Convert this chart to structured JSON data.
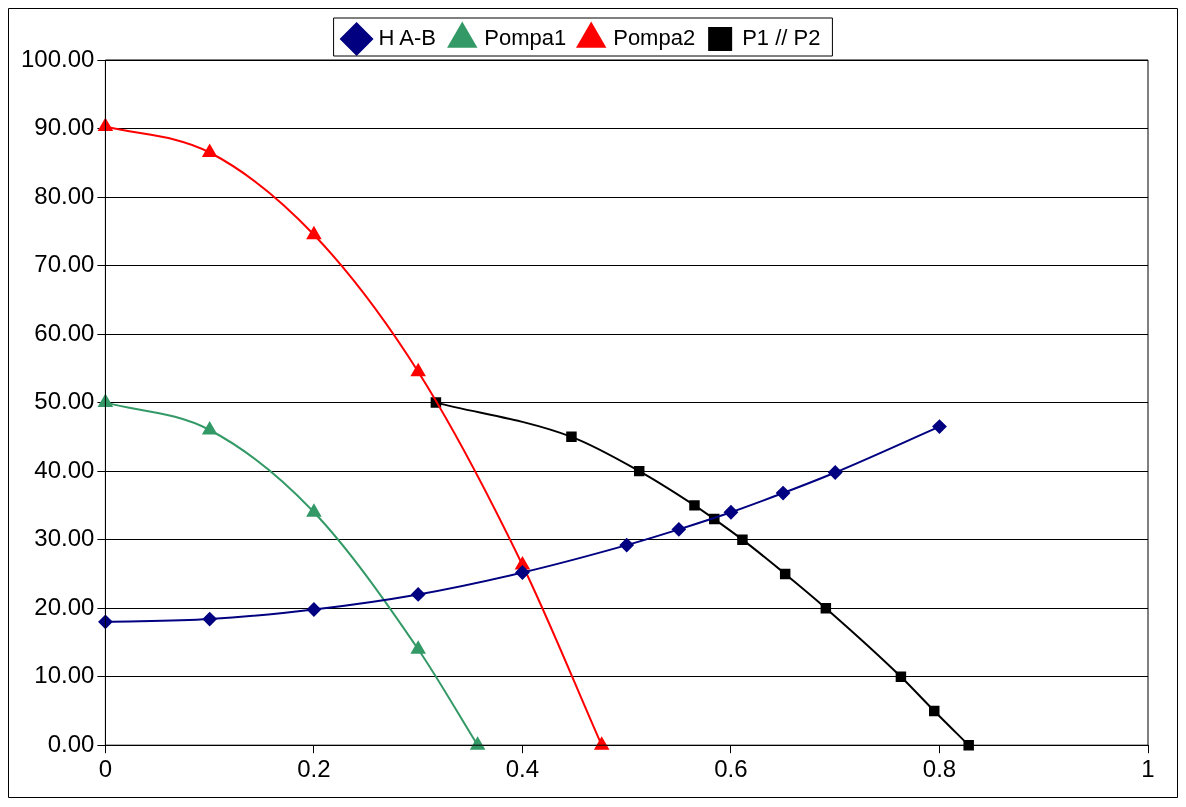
{
  "chart_data": {
    "type": "line",
    "xlim": [
      0,
      1
    ],
    "xticks": [
      0,
      0.2,
      0.4,
      0.6,
      0.8,
      1
    ],
    "ylim": [
      0,
      100
    ],
    "yticks": [
      {
        "value": 0,
        "label": "0.00"
      },
      {
        "value": 10,
        "label": "10.00"
      },
      {
        "value": 20,
        "label": "20.00"
      },
      {
        "value": 30,
        "label": "30.00"
      },
      {
        "value": 40,
        "label": "40.00"
      },
      {
        "value": 50,
        "label": "50.00"
      },
      {
        "value": 60,
        "label": "60.00"
      },
      {
        "value": 70,
        "label": "70.00"
      },
      {
        "value": 80,
        "label": "80.00"
      },
      {
        "value": 90,
        "label": "90.00"
      },
      {
        "value": 100,
        "label": "100.00"
      }
    ],
    "grid": "y",
    "legend": "top",
    "series": [
      {
        "name": "H A-B",
        "color": "#000080",
        "marker": "diamond",
        "x": [
          0,
          0.1,
          0.2,
          0.3,
          0.4,
          0.5,
          0.55,
          0.6,
          0.65,
          0.7,
          0.8
        ],
        "values": [
          18,
          18.4,
          19.8,
          22,
          25.2,
          29.2,
          31.5,
          34,
          36.8,
          39.8,
          46.5
        ]
      },
      {
        "name": "Pompa1",
        "color": "#339966",
        "marker": "triangle",
        "x": [
          0,
          0.1,
          0.2,
          0.3,
          0.357
        ],
        "values": [
          50,
          46,
          34,
          14,
          0
        ]
      },
      {
        "name": "Pompa2",
        "color": "#ff0000",
        "marker": "triangle",
        "x": [
          0,
          0.1,
          0.2,
          0.3,
          0.4,
          0.476
        ],
        "values": [
          90.3,
          86.5,
          74.5,
          54.5,
          26.3,
          0
        ]
      },
      {
        "name": "P1 // P2",
        "color": "#000000",
        "marker": "square",
        "x": [
          0.317,
          0.447,
          0.512,
          0.565,
          0.584,
          0.611,
          0.652,
          0.691,
          0.763,
          0.795,
          0.828
        ],
        "values": [
          50,
          45,
          40,
          35,
          33,
          30,
          25,
          20,
          10,
          5,
          0
        ]
      }
    ]
  }
}
